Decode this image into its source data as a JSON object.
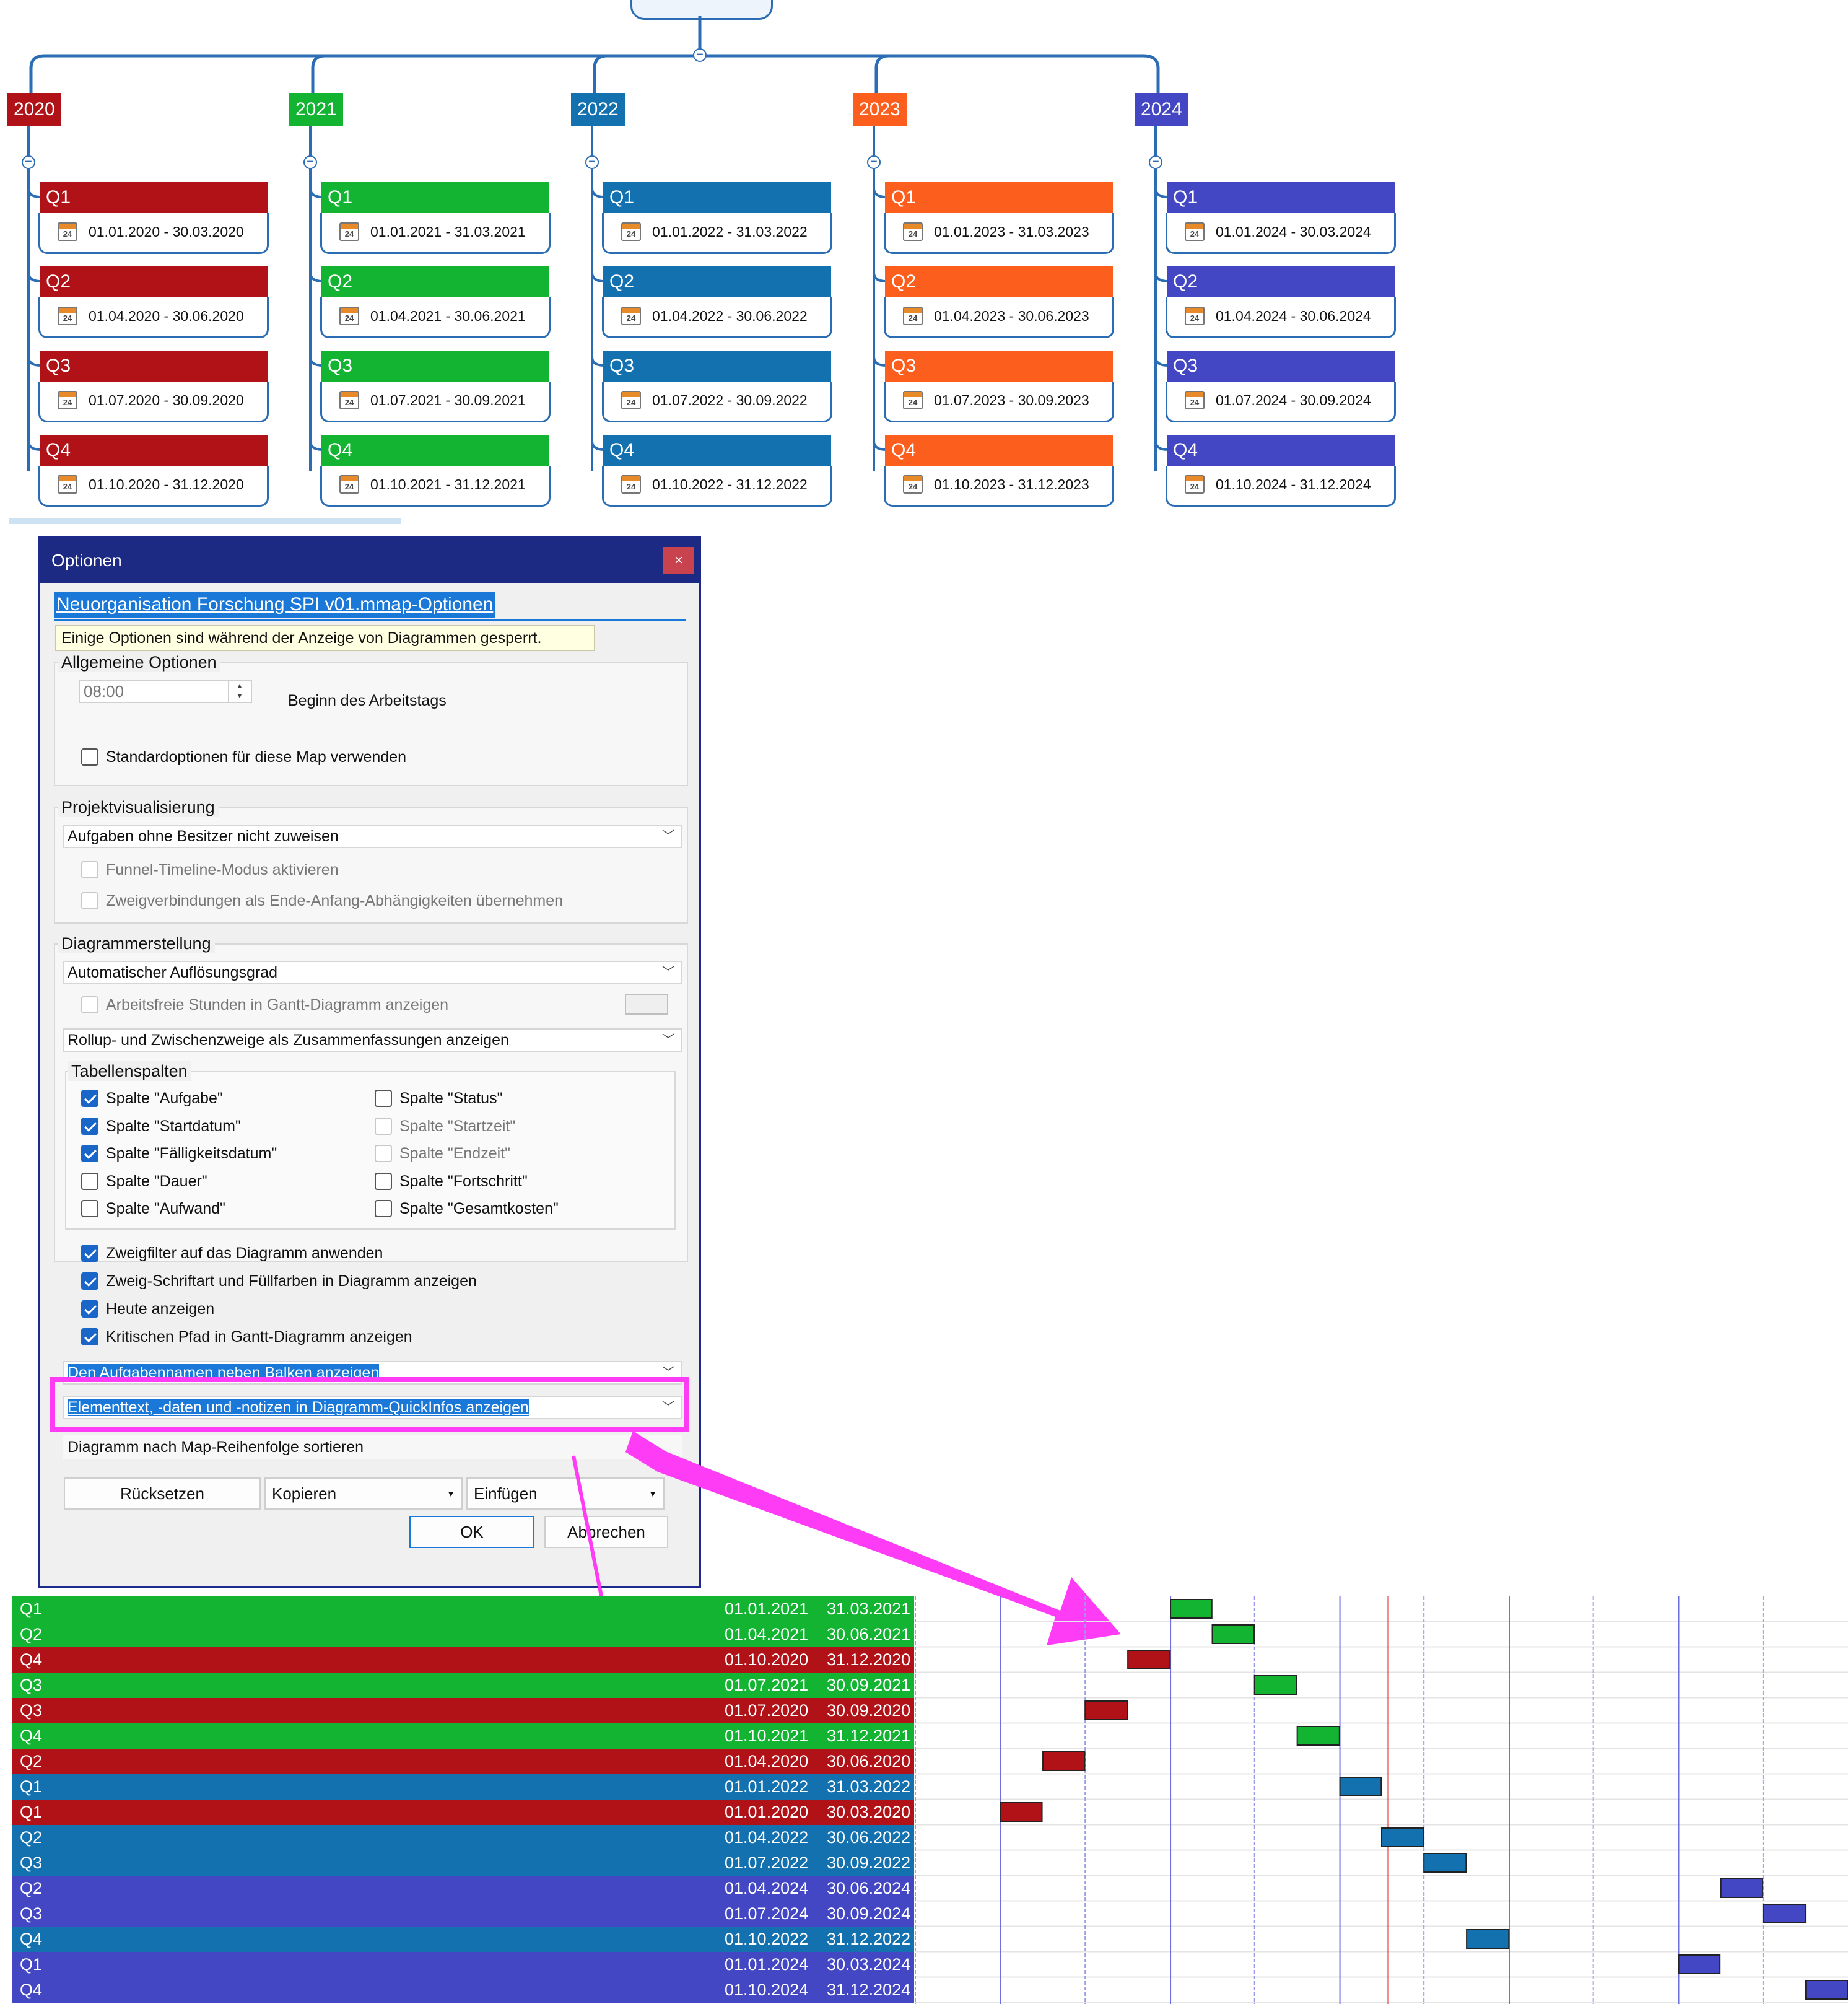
{
  "colors": {
    "year_2020": "#b01217",
    "year_2021": "#12b431",
    "year_2022": "#1371b0",
    "year_2023": "#fb5e1d",
    "year_2024": "#4447c3",
    "accent": "#1a78d8",
    "highlight_magenta": "#ff3cf5",
    "today_line": "#e02020"
  },
  "mindmap": {
    "years": [
      {
        "label": "2020",
        "quarters": [
          {
            "label": "Q1",
            "start": "01.01.2020",
            "end": "30.03.2020"
          },
          {
            "label": "Q2",
            "start": "01.04.2020",
            "end": "30.06.2020"
          },
          {
            "label": "Q3",
            "start": "01.07.2020",
            "end": "30.09.2020"
          },
          {
            "label": "Q4",
            "start": "01.10.2020",
            "end": "31.12.2020"
          }
        ]
      },
      {
        "label": "2021",
        "quarters": [
          {
            "label": "Q1",
            "start": "01.01.2021",
            "end": "31.03.2021"
          },
          {
            "label": "Q2",
            "start": "01.04.2021",
            "end": "30.06.2021"
          },
          {
            "label": "Q3",
            "start": "01.07.2021",
            "end": "30.09.2021"
          },
          {
            "label": "Q4",
            "start": "01.10.2021",
            "end": "31.12.2021"
          }
        ]
      },
      {
        "label": "2022",
        "quarters": [
          {
            "label": "Q1",
            "start": "01.01.2022",
            "end": "31.03.2022"
          },
          {
            "label": "Q2",
            "start": "01.04.2022",
            "end": "30.06.2022"
          },
          {
            "label": "Q3",
            "start": "01.07.2022",
            "end": "30.09.2022"
          },
          {
            "label": "Q4",
            "start": "01.10.2022",
            "end": "31.12.2022"
          }
        ]
      },
      {
        "label": "2023",
        "quarters": [
          {
            "label": "Q1",
            "start": "01.01.2023",
            "end": "31.03.2023"
          },
          {
            "label": "Q2",
            "start": "01.04.2023",
            "end": "30.06.2023"
          },
          {
            "label": "Q3",
            "start": "01.07.2023",
            "end": "30.09.2023"
          },
          {
            "label": "Q4",
            "start": "01.10.2023",
            "end": "31.12.2023"
          }
        ]
      },
      {
        "label": "2024",
        "quarters": [
          {
            "label": "Q1",
            "start": "01.01.2024",
            "end": "30.03.2024"
          },
          {
            "label": "Q2",
            "start": "01.04.2024",
            "end": "30.06.2024"
          },
          {
            "label": "Q3",
            "start": "01.07.2024",
            "end": "30.09.2024"
          },
          {
            "label": "Q4",
            "start": "01.10.2024",
            "end": "31.12.2024"
          }
        ]
      }
    ],
    "calendar_icon": "calendar-icon",
    "calendar_icon_day": "24",
    "date_separator": " - "
  },
  "dialog": {
    "title": "Optionen",
    "close_label": "×",
    "doc_title": "Neuorganisation Forschung SPI v01.mmap-Optionen",
    "info": "Einige Optionen sind während der Anzeige von Diagrammen gesperrt.",
    "general": {
      "title": "Allgemeine Optionen",
      "time_value": "08:00",
      "time_label": "Beginn des Arbeitstags",
      "use_defaults_label": "Standardoptionen für diese Map verwenden"
    },
    "project": {
      "title": "Projektvisualisierung",
      "assignment_select": "Aufgaben ohne Besitzer nicht zuweisen",
      "funnel_label": "Funnel-Timeline-Modus aktivieren",
      "links_label": "Zweigverbindungen als Ende-Anfang-Abhängigkeiten übernehmen"
    },
    "diagram": {
      "title": "Diagrammerstellung",
      "resolution_select": "Automatischer Auflösungsgrad",
      "nonwork_label": "Arbeitsfreie Stunden in Gantt-Diagramm anzeigen",
      "rollup_select": "Rollup- und Zwischenzweige als Zusammenfassungen anzeigen",
      "columns_title": "Tabellenspalten",
      "columns_left": [
        {
          "label": "Spalte \"Aufgabe\"",
          "checked": true
        },
        {
          "label": "Spalte \"Startdatum\"",
          "checked": true
        },
        {
          "label": "Spalte \"Fälligkeitsdatum\"",
          "checked": true
        },
        {
          "label": "Spalte \"Dauer\"",
          "checked": false
        },
        {
          "label": "Spalte \"Aufwand\"",
          "checked": false
        }
      ],
      "columns_right": [
        {
          "label": "Spalte \"Status\"",
          "checked": false,
          "disabled": false
        },
        {
          "label": "Spalte \"Startzeit\"",
          "checked": false,
          "disabled": true
        },
        {
          "label": "Spalte \"Endzeit\"",
          "checked": false,
          "disabled": true
        },
        {
          "label": "Spalte \"Fortschritt\"",
          "checked": false,
          "disabled": false
        },
        {
          "label": "Spalte \"Gesamtkosten\"",
          "checked": false,
          "disabled": false
        }
      ],
      "options": [
        {
          "label": "Zweigfilter auf das Diagramm anwenden",
          "checked": true
        },
        {
          "label": "Zweig-Schriftart und Füllfarben in Diagramm anzeigen",
          "checked": true
        },
        {
          "label": "Heute anzeigen",
          "checked": true
        },
        {
          "label": "Kritischen Pfad in Gantt-Diagramm anzeigen",
          "checked": true
        }
      ],
      "taskname_select": "Den Aufgabennamen neben Balken anzeigen",
      "quickinfo_select": "Elementtext, -daten und -notizen in Diagramm-QuickInfos anzeigen",
      "sort_select": "Diagramm nach Map-Reihenfolge sortieren"
    },
    "buttons": {
      "reset": "Rücksetzen",
      "copy": "Kopieren",
      "paste": "Einfügen",
      "ok": "OK",
      "cancel": "Abbrechen"
    }
  },
  "gantt": {
    "rows": [
      {
        "name": "Q1",
        "start": "01.01.2021",
        "end": "31.03.2021",
        "year": "2021"
      },
      {
        "name": "Q2",
        "start": "01.04.2021",
        "end": "30.06.2021",
        "year": "2021"
      },
      {
        "name": "Q4",
        "start": "01.10.2020",
        "end": "31.12.2020",
        "year": "2020"
      },
      {
        "name": "Q3",
        "start": "01.07.2021",
        "end": "30.09.2021",
        "year": "2021"
      },
      {
        "name": "Q3",
        "start": "01.07.2020",
        "end": "30.09.2020",
        "year": "2020"
      },
      {
        "name": "Q4",
        "start": "01.10.2021",
        "end": "31.12.2021",
        "year": "2021"
      },
      {
        "name": "Q2",
        "start": "01.04.2020",
        "end": "30.06.2020",
        "year": "2020"
      },
      {
        "name": "Q1",
        "start": "01.01.2022",
        "end": "31.03.2022",
        "year": "2022"
      },
      {
        "name": "Q1",
        "start": "01.01.2020",
        "end": "30.03.2020",
        "year": "2020"
      },
      {
        "name": "Q2",
        "start": "01.04.2022",
        "end": "30.06.2022",
        "year": "2022"
      },
      {
        "name": "Q3",
        "start": "01.07.2022",
        "end": "30.09.2022",
        "year": "2022"
      },
      {
        "name": "Q2",
        "start": "01.04.2024",
        "end": "30.06.2024",
        "year": "2024"
      },
      {
        "name": "Q3",
        "start": "01.07.2024",
        "end": "30.09.2024",
        "year": "2024"
      },
      {
        "name": "Q4",
        "start": "01.10.2022",
        "end": "31.12.2022",
        "year": "2022"
      },
      {
        "name": "Q1",
        "start": "01.01.2024",
        "end": "30.03.2024",
        "year": "2024"
      },
      {
        "name": "Q4",
        "start": "01.10.2024",
        "end": "31.12.2024",
        "year": "2024"
      }
    ],
    "timeline_start": "2019-07-01",
    "timeline_end": "2024-12-31",
    "today": "2022-04-15"
  }
}
